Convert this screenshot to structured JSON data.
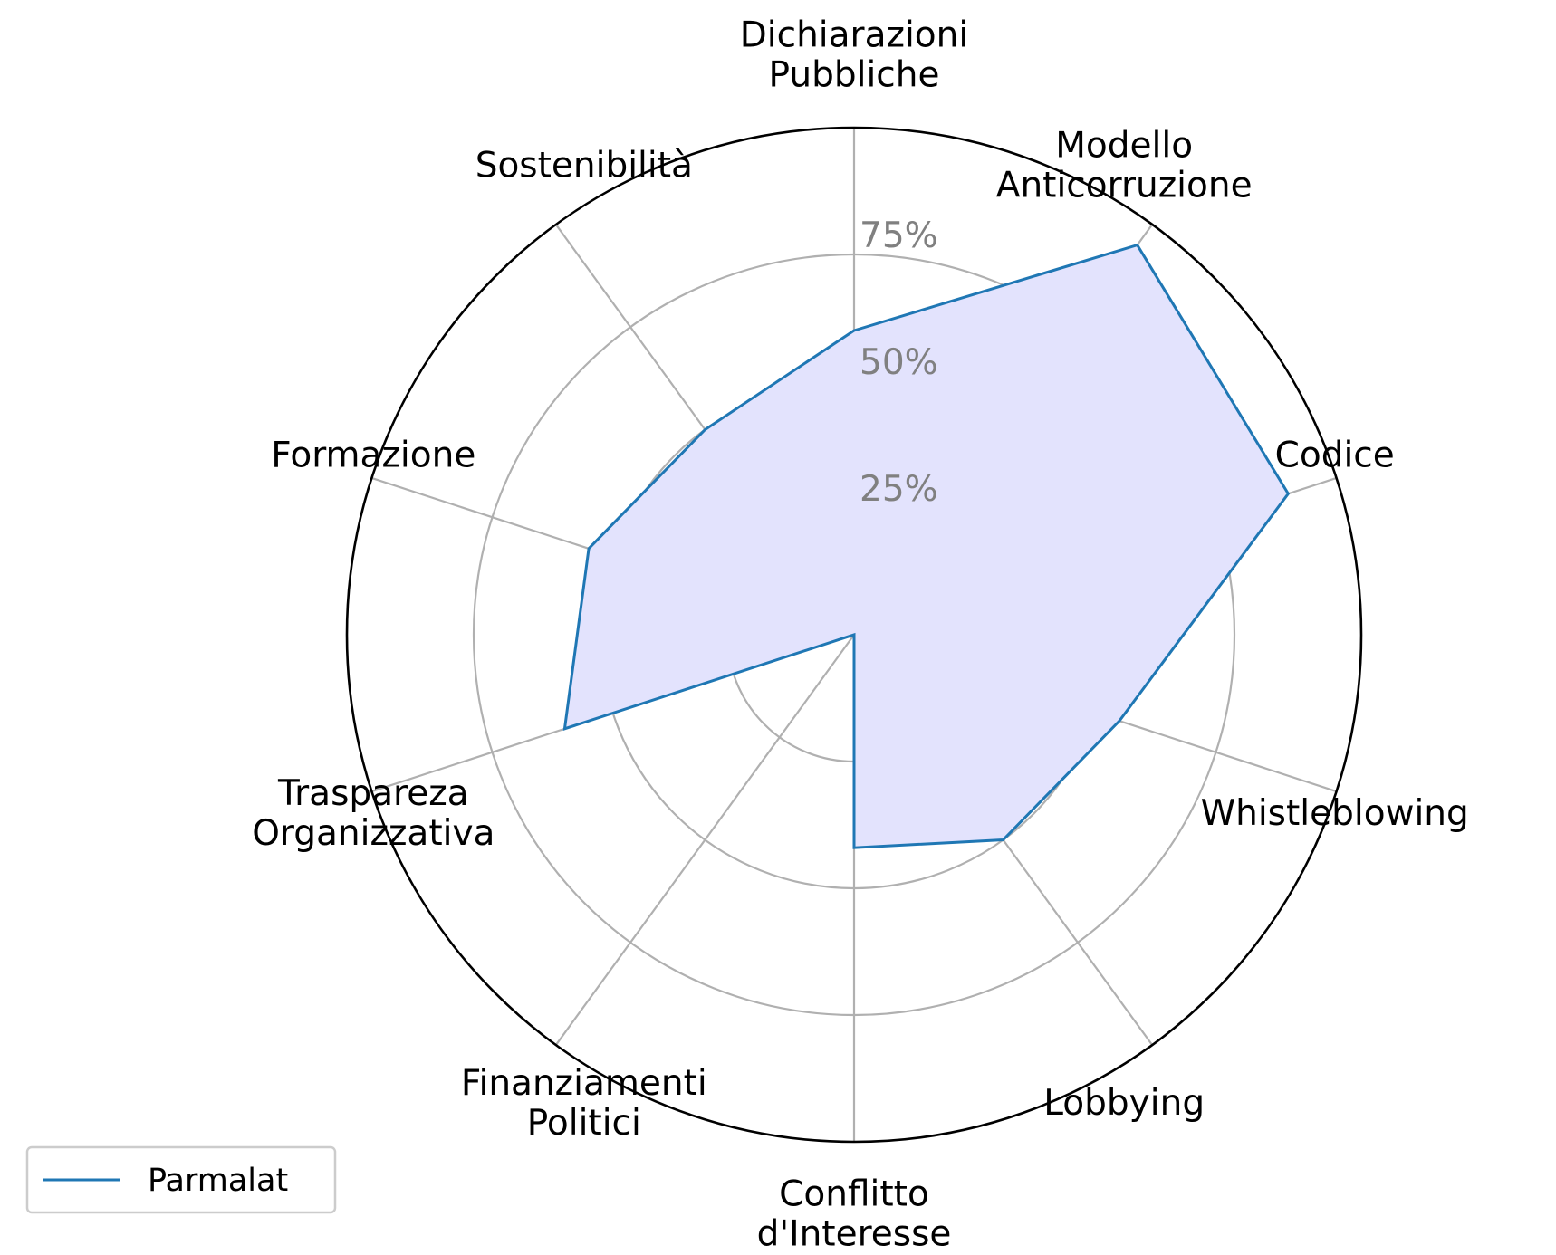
{
  "chart_data": {
    "type": "radar",
    "categories": [
      [
        "Dichiarazioni",
        "Pubbliche"
      ],
      [
        "Modello",
        "Anticorruzione"
      ],
      [
        "Codice"
      ],
      [
        "Whistleblowing"
      ],
      [
        "Lobbying"
      ],
      [
        "Conflitto",
        "d'Interesse"
      ],
      [
        "Finanziamenti",
        "Politici"
      ],
      [
        "Traspareza",
        "Organizzativa"
      ],
      [
        "Formazione"
      ],
      [
        "Sostenibilità"
      ]
    ],
    "series": [
      {
        "name": "Parmalat",
        "values": [
          60,
          95,
          90,
          55,
          50,
          42,
          0,
          60,
          55,
          50
        ]
      }
    ],
    "rlim": [
      0,
      100
    ],
    "rticks": [
      25,
      50,
      75
    ],
    "rtick_labels": [
      "25%",
      "50%",
      "75%"
    ],
    "grid": true,
    "legend_position": "lower-left",
    "colors": {
      "line": "#1f77b4",
      "fill": "#e3e3fd",
      "grid": "#b0b0b0",
      "frame": "#000000",
      "tick_label": "#808080"
    }
  }
}
